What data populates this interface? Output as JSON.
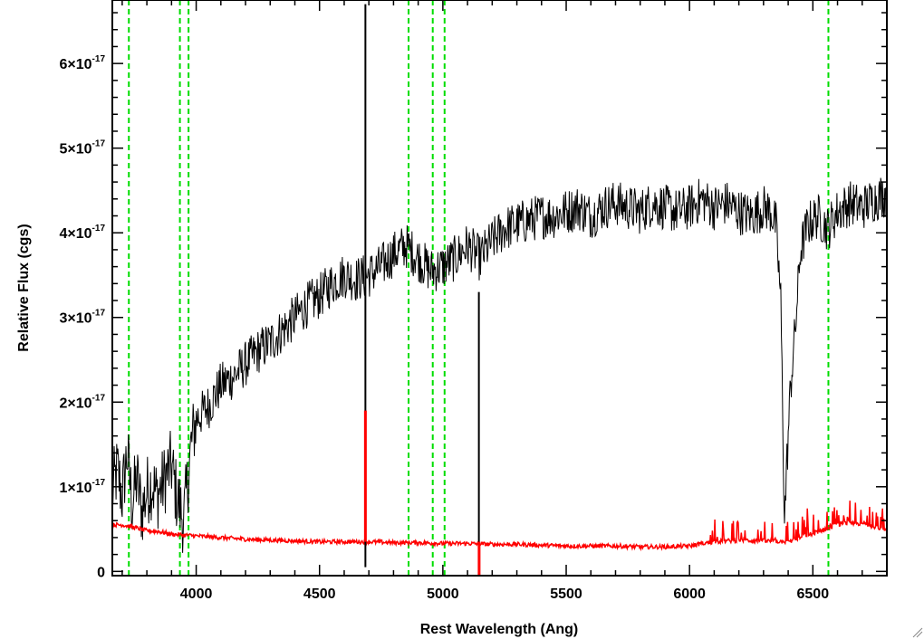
{
  "chart_data": {
    "type": "line",
    "xlabel": "Rest Wavelength (Ang)",
    "ylabel": "Relative Flux (cgs)",
    "xlim": [
      3660,
      6800
    ],
    "ylim": [
      -5e-19,
      6.75e-17
    ],
    "x_ticks": [
      {
        "value": 4000,
        "label": "4000"
      },
      {
        "value": 4500,
        "label": "4500"
      },
      {
        "value": 5000,
        "label": "5000"
      },
      {
        "value": 5500,
        "label": "5500"
      },
      {
        "value": 6000,
        "label": "6000"
      },
      {
        "value": 6500,
        "label": "6500"
      }
    ],
    "x_minor_step": 100,
    "y_ticks": [
      {
        "value": 0,
        "mantissa": "0",
        "exponent": ""
      },
      {
        "value": 1e-17,
        "mantissa": "1×10",
        "exponent": "-17"
      },
      {
        "value": 2e-17,
        "mantissa": "2×10",
        "exponent": "-17"
      },
      {
        "value": 3e-17,
        "mantissa": "3×10",
        "exponent": "-17"
      },
      {
        "value": 4e-17,
        "mantissa": "4×10",
        "exponent": "-17"
      },
      {
        "value": 5e-17,
        "mantissa": "5×10",
        "exponent": "-17"
      },
      {
        "value": 6e-17,
        "mantissa": "6×10",
        "exponent": "-17"
      }
    ],
    "y_minor_step": 2e-18,
    "grid": false,
    "reference_lines": {
      "color": "#00dd00",
      "style": "dashed",
      "x": [
        3727,
        3934,
        3969,
        4861,
        4959,
        5007,
        6563
      ]
    },
    "series": [
      {
        "color": "#000000",
        "points": [
          [
            3660,
            9.5e-18
          ],
          [
            3680,
            1.2e-17
          ],
          [
            3700,
            9e-18
          ],
          [
            3720,
            1.4e-17
          ],
          [
            3740,
            8e-18
          ],
          [
            3760,
            1.1e-17
          ],
          [
            3780,
            7e-18
          ],
          [
            3800,
            9.5e-18
          ],
          [
            3820,
            1.05e-17
          ],
          [
            3840,
            9e-18
          ],
          [
            3860,
            1e-17
          ],
          [
            3880,
            1.15e-17
          ],
          [
            3900,
            1.25e-17
          ],
          [
            3920,
            9e-18
          ],
          [
            3950,
            6e-18
          ],
          [
            3980,
            1.5e-17
          ],
          [
            4000,
            1.8e-17
          ],
          [
            4050,
            1.95e-17
          ],
          [
            4100,
            2.2e-17
          ],
          [
            4150,
            2.3e-17
          ],
          [
            4200,
            2.45e-17
          ],
          [
            4250,
            2.6e-17
          ],
          [
            4300,
            2.7e-17
          ],
          [
            4350,
            2.85e-17
          ],
          [
            4400,
            3e-17
          ],
          [
            4450,
            3.15e-17
          ],
          [
            4500,
            3.25e-17
          ],
          [
            4550,
            3.4e-17
          ],
          [
            4600,
            3.5e-17
          ],
          [
            4650,
            3.45e-17
          ],
          [
            4700,
            3.5e-17
          ],
          [
            4750,
            3.6e-17
          ],
          [
            4800,
            3.75e-17
          ],
          [
            4850,
            3.85e-17
          ],
          [
            4900,
            3.7e-17
          ],
          [
            4950,
            3.55e-17
          ],
          [
            5000,
            3.6e-17
          ],
          [
            5050,
            3.7e-17
          ],
          [
            5100,
            3.85e-17
          ],
          [
            5150,
            3.7e-17
          ],
          [
            5200,
            3.9e-17
          ],
          [
            5250,
            4.05e-17
          ],
          [
            5300,
            4.1e-17
          ],
          [
            5350,
            4.15e-17
          ],
          [
            5400,
            4.2e-17
          ],
          [
            5450,
            4.2e-17
          ],
          [
            5500,
            4.25e-17
          ],
          [
            5550,
            4.3e-17
          ],
          [
            5600,
            4.2e-17
          ],
          [
            5650,
            4.3e-17
          ],
          [
            5700,
            4.35e-17
          ],
          [
            5750,
            4.3e-17
          ],
          [
            5800,
            4.25e-17
          ],
          [
            5850,
            4.35e-17
          ],
          [
            5900,
            4.3e-17
          ],
          [
            5950,
            4.25e-17
          ],
          [
            6000,
            4.3e-17
          ],
          [
            6050,
            4.4e-17
          ],
          [
            6100,
            4.3e-17
          ],
          [
            6150,
            4.35e-17
          ],
          [
            6200,
            4.25e-17
          ],
          [
            6250,
            4.2e-17
          ],
          [
            6300,
            4.3e-17
          ],
          [
            6330,
            4.25e-17
          ],
          [
            6350,
            4.1e-17
          ],
          [
            6370,
            3.2e-17
          ],
          [
            6385,
            6e-18
          ],
          [
            6395,
            1.3e-17
          ],
          [
            6410,
            2.2e-17
          ],
          [
            6430,
            2.9e-17
          ],
          [
            6450,
            3.8e-17
          ],
          [
            6480,
            4.1e-17
          ],
          [
            6520,
            4.2e-17
          ],
          [
            6560,
            4.05e-17
          ],
          [
            6600,
            4.25e-17
          ],
          [
            6650,
            4.35e-17
          ],
          [
            6700,
            4.3e-17
          ],
          [
            6750,
            4.4e-17
          ],
          [
            6790,
            4.45e-17
          ]
        ]
      },
      {
        "color": "#ff0000",
        "points": [
          [
            3660,
            5.5e-18
          ],
          [
            3700,
            5.5e-18
          ],
          [
            3750,
            5.2e-18
          ],
          [
            3800,
            4.8e-18
          ],
          [
            3850,
            4.7e-18
          ],
          [
            3900,
            4.4e-18
          ],
          [
            3950,
            4.3e-18
          ],
          [
            4000,
            4.2e-18
          ],
          [
            4100,
            4e-18
          ],
          [
            4200,
            3.8e-18
          ],
          [
            4300,
            3.7e-18
          ],
          [
            4400,
            3.6e-18
          ],
          [
            4500,
            3.5e-18
          ],
          [
            4600,
            3.5e-18
          ],
          [
            4700,
            3.5e-18
          ],
          [
            4800,
            3.4e-18
          ],
          [
            4900,
            3.4e-18
          ],
          [
            5000,
            3.3e-18
          ],
          [
            5100,
            3.3e-18
          ],
          [
            5200,
            3.2e-18
          ],
          [
            5300,
            3.2e-18
          ],
          [
            5400,
            3.1e-18
          ],
          [
            5500,
            3e-18
          ],
          [
            5600,
            3e-18
          ],
          [
            5700,
            3e-18
          ],
          [
            5800,
            2.9e-18
          ],
          [
            5900,
            2.9e-18
          ],
          [
            6000,
            3e-18
          ],
          [
            6050,
            3.3e-18
          ],
          [
            6100,
            3.5e-18
          ],
          [
            6200,
            3.7e-18
          ],
          [
            6300,
            3.6e-18
          ],
          [
            6400,
            3.5e-18
          ],
          [
            6450,
            4e-18
          ],
          [
            6500,
            4.5e-18
          ],
          [
            6550,
            5e-18
          ],
          [
            6600,
            5.5e-18
          ],
          [
            6650,
            5.8e-18
          ],
          [
            6700,
            5.6e-18
          ],
          [
            6750,
            5.3e-18
          ],
          [
            6790,
            5e-18
          ]
        ]
      }
    ]
  }
}
